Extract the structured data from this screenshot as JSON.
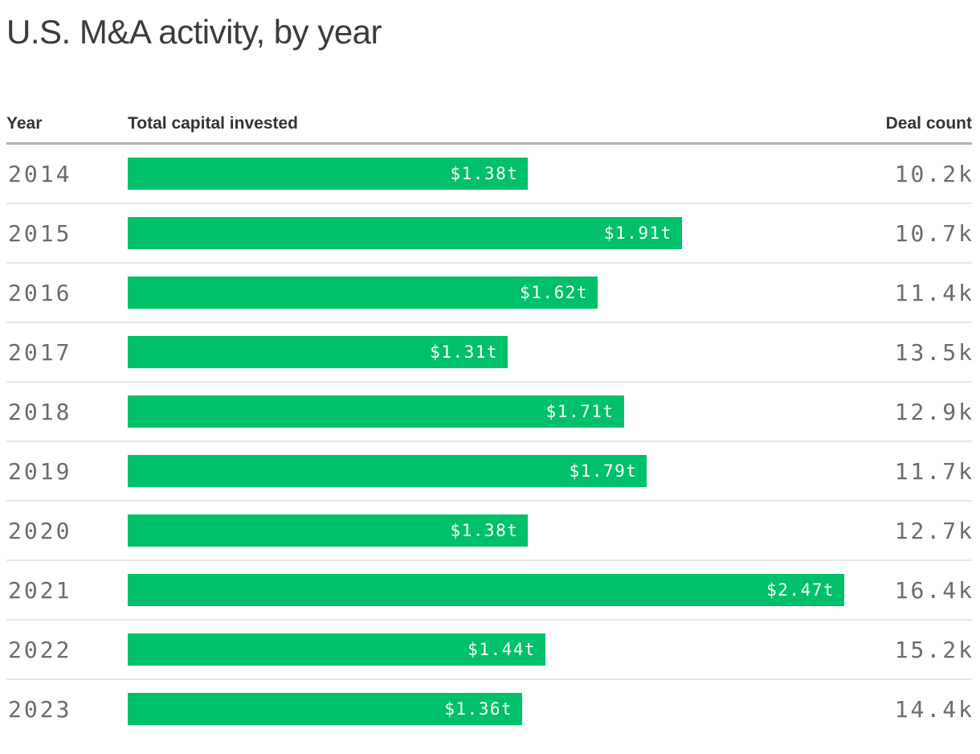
{
  "chart_data": {
    "type": "bar",
    "orientation": "horizontal",
    "title": "U.S. M&A activity, by year",
    "col_year": "Year",
    "col_capital": "Total capital invested",
    "col_deals": "Deal count",
    "categories": [
      "2014",
      "2015",
      "2016",
      "2017",
      "2018",
      "2019",
      "2020",
      "2021",
      "2022",
      "2023"
    ],
    "series": [
      {
        "name": "Total capital invested",
        "unit": "trillions USD",
        "values": [
          1.38,
          1.91,
          1.62,
          1.31,
          1.71,
          1.79,
          1.38,
          2.47,
          1.44,
          1.36
        ],
        "labels": [
          "$1.38t",
          "$1.91t",
          "$1.62t",
          "$1.31t",
          "$1.71t",
          "$1.79t",
          "$1.38t",
          "$2.47t",
          "$1.44t",
          "$1.36t"
        ]
      },
      {
        "name": "Deal count",
        "values": [
          10200,
          10700,
          11400,
          13500,
          12900,
          11700,
          12700,
          16400,
          15200,
          14400
        ],
        "labels": [
          "10.2k",
          "10.7k",
          "11.4k",
          "13.5k",
          "12.9k",
          "11.7k",
          "12.7k",
          "16.4k",
          "15.2k",
          "14.4k"
        ]
      }
    ],
    "xlim": [
      0,
      2.47
    ],
    "grid": false,
    "legend": false,
    "colors": {
      "bar": "#00c06a",
      "bar_label": "#ffffff",
      "title_text": "#3b3b3b",
      "header_text": "#333333",
      "row_text": "#6b6b6b",
      "header_rule": "#b1b1b1",
      "row_rule": "#e7e7e7",
      "background": "#ffffff"
    }
  }
}
